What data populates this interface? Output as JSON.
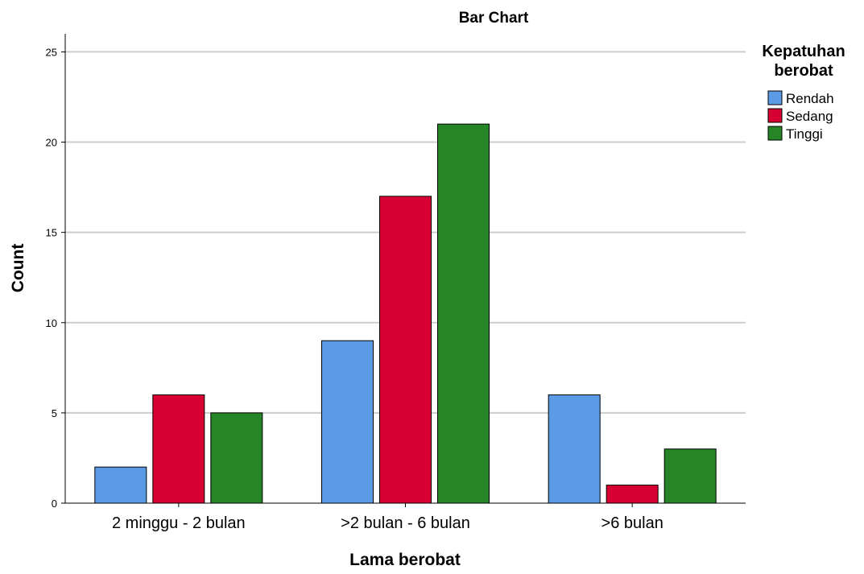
{
  "chart_data": {
    "type": "bar",
    "title": "Bar Chart",
    "xlabel": "Lama berobat",
    "ylabel": "Count",
    "categories": [
      "2 minggu - 2 bulan",
      ">2 bulan - 6 bulan",
      ">6 bulan"
    ],
    "series": [
      {
        "name": "Rendah",
        "values": [
          2,
          9,
          6
        ],
        "color": "#5b9be6"
      },
      {
        "name": "Sedang",
        "values": [
          6,
          17,
          1
        ],
        "color": "#d80032"
      },
      {
        "name": "Tinggi",
        "values": [
          5,
          21,
          3
        ],
        "color": "#268526"
      }
    ],
    "ylim": [
      0,
      26
    ],
    "yticks": [
      "0",
      "5",
      "10",
      "15",
      "20",
      "25"
    ],
    "grid": true,
    "legend": {
      "title_line1": "Kepatuhan",
      "title_line2": "berobat",
      "placement": "top-right outside plot"
    }
  }
}
